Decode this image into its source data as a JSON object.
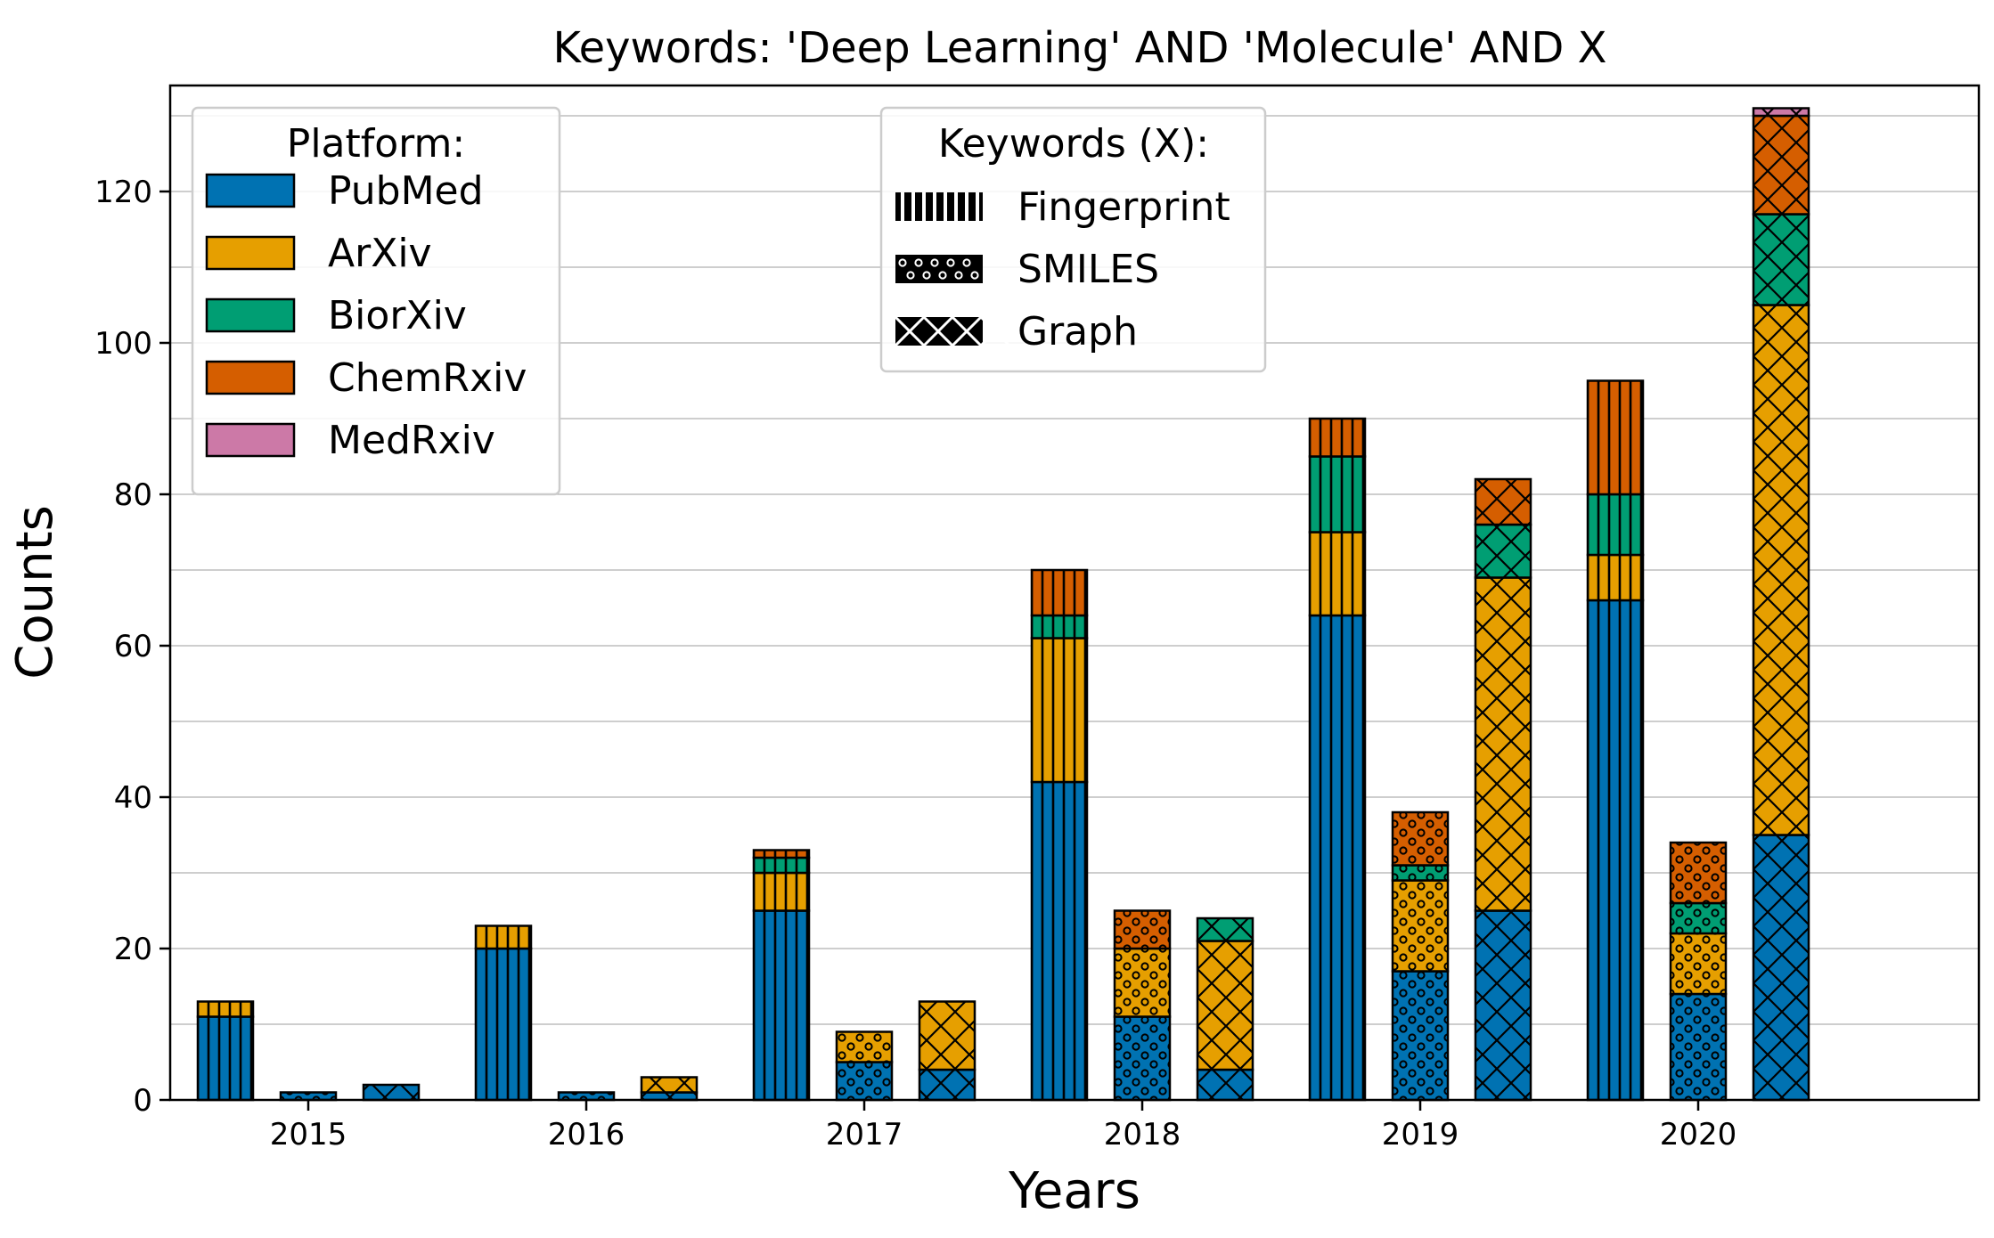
{
  "chart_data": {
    "type": "bar",
    "stacked": true,
    "title": "Keywords: 'Deep Learning' AND 'Molecule' AND X",
    "xlabel": "Years",
    "ylabel": "Counts",
    "ylim": [
      0,
      134
    ],
    "yticks": [
      0,
      20,
      40,
      60,
      80,
      100,
      120
    ],
    "categories": [
      "2015",
      "2016",
      "2017",
      "2018",
      "2019",
      "2020"
    ],
    "keywords": [
      "Fingerprint",
      "SMILES",
      "Graph"
    ],
    "platforms": [
      "PubMed",
      "ArXiv",
      "BiorXiv",
      "ChemRxiv",
      "MedRxiv"
    ],
    "colors": {
      "PubMed": "#0072b2",
      "ArXiv": "#e69f00",
      "BiorXiv": "#009e73",
      "ChemRxiv": "#d55e00",
      "MedRxiv": "#cc79a7"
    },
    "series": [
      {
        "keyword": "Fingerprint",
        "pattern": "vertical-lines",
        "values": {
          "PubMed": [
            11,
            20,
            25,
            42,
            64,
            66
          ],
          "ArXiv": [
            2,
            3,
            5,
            19,
            11,
            6
          ],
          "BiorXiv": [
            0,
            0,
            2,
            3,
            10,
            8
          ],
          "ChemRxiv": [
            0,
            0,
            1,
            6,
            5,
            15
          ],
          "MedRxiv": [
            0,
            0,
            0,
            0,
            0,
            0
          ]
        }
      },
      {
        "keyword": "SMILES",
        "pattern": "circles",
        "values": {
          "PubMed": [
            1,
            1,
            5,
            11,
            17,
            14
          ],
          "ArXiv": [
            0,
            0,
            4,
            9,
            12,
            8
          ],
          "BiorXiv": [
            0,
            0,
            0,
            0,
            2,
            4
          ],
          "ChemRxiv": [
            0,
            0,
            0,
            5,
            7,
            8
          ],
          "MedRxiv": [
            0,
            0,
            0,
            0,
            0,
            0
          ]
        }
      },
      {
        "keyword": "Graph",
        "pattern": "cross-hatch",
        "values": {
          "PubMed": [
            2,
            1,
            4,
            4,
            25,
            35
          ],
          "ArXiv": [
            0,
            2,
            9,
            17,
            44,
            70
          ],
          "BiorXiv": [
            0,
            0,
            0,
            3,
            7,
            12
          ],
          "ChemRxiv": [
            0,
            0,
            0,
            0,
            6,
            13
          ],
          "MedRxiv": [
            0,
            0,
            0,
            0,
            0,
            1
          ]
        }
      }
    ],
    "legend_platform": {
      "title": "Platform:",
      "entries": [
        "PubMed",
        "ArXiv",
        "BiorXiv",
        "ChemRxiv",
        "MedRxiv"
      ],
      "placement": "top-left"
    },
    "legend_keywords": {
      "title": "Keywords (X):",
      "entries": [
        "Fingerprint",
        "SMILES",
        "Graph"
      ],
      "placement": "top-center"
    }
  }
}
